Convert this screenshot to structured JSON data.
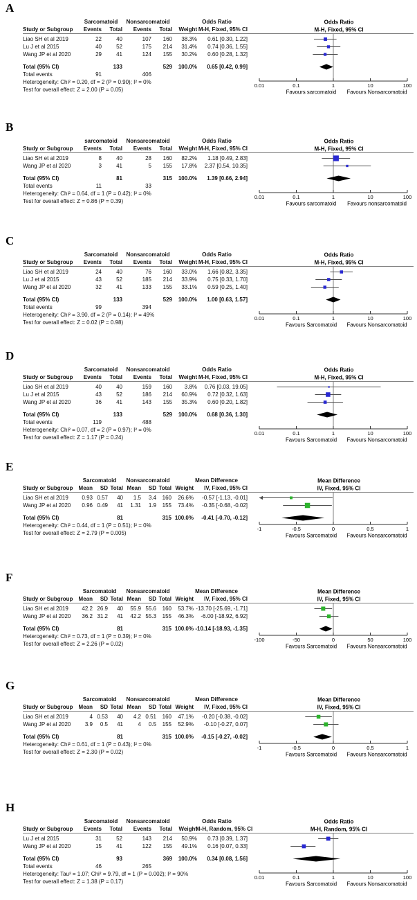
{
  "figure_labels": [
    "A",
    "B",
    "C",
    "D",
    "E",
    "F",
    "G",
    "H"
  ],
  "chart_data": [
    {
      "type": "forest",
      "label": "A",
      "data_kind": "or",
      "effect_measure": "Odds Ratio",
      "method": "M-H, Fixed, 95% CI",
      "group1": "Sarcomatoid",
      "group2": "Nonsarcomatoid",
      "columns": [
        "Study or Subgroup",
        "Events",
        "Total",
        "Events",
        "Total",
        "Weight"
      ],
      "marker_color": "#2a2ad2",
      "studies": [
        {
          "name": "Liao SH et al 2019",
          "cells": [
            "22",
            "40",
            "107",
            "160",
            "38.3%"
          ],
          "ci_text": "0.61 [0.30, 1.22]",
          "est": 0.61,
          "lo": 0.3,
          "hi": 1.22,
          "weight": 38.3
        },
        {
          "name": "Lu J et al 2015",
          "cells": [
            "40",
            "52",
            "175",
            "214",
            "31.4%"
          ],
          "ci_text": "0.74 [0.36, 1.55]",
          "est": 0.74,
          "lo": 0.36,
          "hi": 1.55,
          "weight": 31.4
        },
        {
          "name": "Wang JP et al 2020",
          "cells": [
            "29",
            "41",
            "124",
            "155",
            "30.2%"
          ],
          "ci_text": "0.60 [0.28, 1.32]",
          "est": 0.6,
          "lo": 0.28,
          "hi": 1.32,
          "weight": 30.2
        }
      ],
      "total": {
        "label": "Total (95% CI)",
        "t1": "133",
        "t2": "529",
        "weight": "100.0%",
        "ci_text": "0.65 [0.42, 0.99]",
        "est": 0.65,
        "lo": 0.42,
        "hi": 0.99
      },
      "total_events": {
        "label": "Total events",
        "v1": "91",
        "v2": "406"
      },
      "heterogeneity": "Heterogeneity: Chi² = 0.20, df = 2 (P = 0.90); I² = 0%",
      "overall_effect": "Test for overall effect: Z = 2.00 (P = 0.05)",
      "axis": {
        "scale": "log",
        "min": 0.01,
        "max": 100,
        "null_value": 1,
        "ticks": [
          {
            "v": 0.01,
            "label": "0.01"
          },
          {
            "v": 0.1,
            "label": "0.1"
          },
          {
            "v": 1,
            "label": "1"
          },
          {
            "v": 10,
            "label": "10"
          },
          {
            "v": 100,
            "label": "100"
          }
        ],
        "favours_left": "Favours sarcomatoid",
        "favours_right": "Favours Nonsarcomatoid"
      }
    },
    {
      "type": "forest",
      "label": "B",
      "data_kind": "or",
      "effect_measure": "Odds Ratio",
      "method": "M-H, Fixed, 95% CI",
      "group1": "sarcomatoid",
      "group2": "Nonsarcomatoid",
      "columns": [
        "Study or Subgroup",
        "Events",
        "Total",
        "Events",
        "Total",
        "Weight"
      ],
      "marker_color": "#2a2ad2",
      "studies": [
        {
          "name": "Liao SH et al 2019",
          "cells": [
            "8",
            "40",
            "28",
            "160",
            "82.2%"
          ],
          "ci_text": "1.18 [0.49, 2.83]",
          "est": 1.18,
          "lo": 0.49,
          "hi": 2.83,
          "weight": 82.2
        },
        {
          "name": "Wang JP et al 2020",
          "cells": [
            "3",
            "41",
            "5",
            "155",
            "17.8%"
          ],
          "ci_text": "2.37 [0.54, 10.35]",
          "est": 2.37,
          "lo": 0.54,
          "hi": 10.35,
          "weight": 17.8
        }
      ],
      "total": {
        "label": "Total (95% CI)",
        "t1": "81",
        "t2": "315",
        "weight": "100.0%",
        "ci_text": "1.39 [0.66, 2.94]",
        "est": 1.39,
        "lo": 0.66,
        "hi": 2.94
      },
      "total_events": {
        "label": "Total events",
        "v1": "11",
        "v2": "33"
      },
      "heterogeneity": "Heterogeneity: Chi² = 0.64, df = 1 (P = 0.42); I² = 0%",
      "overall_effect": "Test for overall effect: Z = 0.86 (P = 0.39)",
      "axis": {
        "scale": "log",
        "min": 0.01,
        "max": 100,
        "null_value": 1,
        "ticks": [
          {
            "v": 0.01,
            "label": "0.01"
          },
          {
            "v": 0.1,
            "label": "0.1"
          },
          {
            "v": 1,
            "label": "1"
          },
          {
            "v": 10,
            "label": "10"
          },
          {
            "v": 100,
            "label": "100"
          }
        ],
        "favours_left": "Favours sarcomatoid",
        "favours_right": "Favours nonsarcomatoid"
      }
    },
    {
      "type": "forest",
      "label": "C",
      "data_kind": "or",
      "effect_measure": "Odds Ratio",
      "method": "M-H, Fixed, 95% CI",
      "group1": "Sarcomatoid",
      "group2": "Nonsarcomatoid",
      "columns": [
        "Study or Subgroup",
        "Events",
        "Total",
        "Events",
        "Total",
        "Weight"
      ],
      "marker_color": "#2a2ad2",
      "studies": [
        {
          "name": "Liao SH et al 2019",
          "cells": [
            "24",
            "40",
            "76",
            "160",
            "33.0%"
          ],
          "ci_text": "1.66 [0.82, 3.35]",
          "est": 1.66,
          "lo": 0.82,
          "hi": 3.35,
          "weight": 33.0
        },
        {
          "name": "Lu J et al 2015",
          "cells": [
            "43",
            "52",
            "185",
            "214",
            "33.9%"
          ],
          "ci_text": "0.75 [0.33, 1.70]",
          "est": 0.75,
          "lo": 0.33,
          "hi": 1.7,
          "weight": 33.9
        },
        {
          "name": "Wang JP et al 2020",
          "cells": [
            "32",
            "41",
            "133",
            "155",
            "33.1%"
          ],
          "ci_text": "0.59 [0.25, 1.40]",
          "est": 0.59,
          "lo": 0.25,
          "hi": 1.4,
          "weight": 33.1
        }
      ],
      "total": {
        "label": "Total (95% CI)",
        "t1": "133",
        "t2": "529",
        "weight": "100.0%",
        "ci_text": "1.00 [0.63, 1.57]",
        "est": 1.0,
        "lo": 0.63,
        "hi": 1.57
      },
      "total_events": {
        "label": "Total events",
        "v1": "99",
        "v2": "394"
      },
      "heterogeneity": "Heterogeneity: Chi² = 3.90, df = 2 (P = 0.14); I² = 49%",
      "overall_effect": "Test for overall effect: Z = 0.02 (P = 0.98)",
      "axis": {
        "scale": "log",
        "min": 0.01,
        "max": 100,
        "null_value": 1,
        "ticks": [
          {
            "v": 0.01,
            "label": "0.01"
          },
          {
            "v": 0.1,
            "label": "0.1"
          },
          {
            "v": 1,
            "label": "1"
          },
          {
            "v": 10,
            "label": "10"
          },
          {
            "v": 100,
            "label": "100"
          }
        ],
        "favours_left": "Favours Sarcomatoid",
        "favours_right": "Favours Nonsarcomatoid"
      }
    },
    {
      "type": "forest",
      "label": "D",
      "data_kind": "or",
      "effect_measure": "Odds Ratio",
      "method": "M-H, Fixed, 95% CI",
      "group1": "Sarcomatoid",
      "group2": "Nonsarcomatoid",
      "columns": [
        "Study or Subgroup",
        "Events",
        "Total",
        "Events",
        "Total",
        "Weight"
      ],
      "marker_color": "#2a2ad2",
      "studies": [
        {
          "name": "Liao SH et al 2019",
          "cells": [
            "40",
            "40",
            "159",
            "160",
            "3.8%"
          ],
          "ci_text": "0.76 [0.03, 19.05]",
          "est": 0.76,
          "lo": 0.03,
          "hi": 19.05,
          "weight": 3.8
        },
        {
          "name": "Lu J et al 2015",
          "cells": [
            "43",
            "52",
            "186",
            "214",
            "60.9%"
          ],
          "ci_text": "0.72 [0.32, 1.63]",
          "est": 0.72,
          "lo": 0.32,
          "hi": 1.63,
          "weight": 60.9
        },
        {
          "name": "Wang JP et al 2020",
          "cells": [
            "36",
            "41",
            "143",
            "155",
            "35.3%"
          ],
          "ci_text": "0.60 [0.20, 1.82]",
          "est": 0.6,
          "lo": 0.2,
          "hi": 1.82,
          "weight": 35.3
        }
      ],
      "total": {
        "label": "Total (95% CI)",
        "t1": "133",
        "t2": "529",
        "weight": "100.0%",
        "ci_text": "0.68 [0.36, 1.30]",
        "est": 0.68,
        "lo": 0.36,
        "hi": 1.3
      },
      "total_events": {
        "label": "Total events",
        "v1": "119",
        "v2": "488"
      },
      "heterogeneity": "Heterogeneity: Chi² = 0.07, df = 2 (P = 0.97); I² = 0%",
      "overall_effect": "Test for overall effect: Z = 1.17 (P = 0.24)",
      "axis": {
        "scale": "log",
        "min": 0.01,
        "max": 100,
        "null_value": 1,
        "ticks": [
          {
            "v": 0.01,
            "label": "0.01"
          },
          {
            "v": 0.1,
            "label": "0.1"
          },
          {
            "v": 1,
            "label": "1"
          },
          {
            "v": 10,
            "label": "10"
          },
          {
            "v": 100,
            "label": "100"
          }
        ],
        "favours_left": "Favours Sarcomatoid",
        "favours_right": "Favours Nonsarcomatoid"
      }
    },
    {
      "type": "forest",
      "label": "E",
      "data_kind": "md",
      "effect_measure": "Mean Difference",
      "method": "IV, Fixed, 95% CI",
      "group1": "Sarcomatoid",
      "group2": "Nonsarcomatoid",
      "columns": [
        "Study or Subgroup",
        "Mean",
        "SD",
        "Total",
        "Mean",
        "SD",
        "Total",
        "Weight"
      ],
      "marker_color": "#2db32d",
      "studies": [
        {
          "name": "Liao SH et al 2019",
          "cells": [
            "0.93",
            "0.57",
            "40",
            "1.5",
            "3.4",
            "160",
            "26.6%"
          ],
          "ci_text": "-0.57 [-1.13, -0.01]",
          "est": -0.57,
          "lo": -1.13,
          "hi": -0.01,
          "weight": 26.6
        },
        {
          "name": "Wang JP et al 2020",
          "cells": [
            "0.96",
            "0.49",
            "41",
            "1.31",
            "1.9",
            "155",
            "73.4%"
          ],
          "ci_text": "-0.35 [-0.68, -0.02]",
          "est": -0.35,
          "lo": -0.68,
          "hi": -0.02,
          "weight": 73.4
        }
      ],
      "total": {
        "label": "Total (95% CI)",
        "t1": "81",
        "t2": "315",
        "weight": "100.0%",
        "ci_text": "-0.41 [-0.70, -0.12]",
        "est": -0.41,
        "lo": -0.7,
        "hi": -0.12
      },
      "total_events": null,
      "heterogeneity": "Heterogeneity: Chi² = 0.44, df = 1 (P = 0.51); I² = 0%",
      "overall_effect": "Test for overall effect: Z = 2.79 (P = 0.005)",
      "axis": {
        "scale": "linear",
        "min": -1,
        "max": 1,
        "null_value": 0,
        "ticks": [
          {
            "v": -1,
            "label": "-1"
          },
          {
            "v": -0.5,
            "label": "-0.5"
          },
          {
            "v": 0,
            "label": "0"
          },
          {
            "v": 0.5,
            "label": "0.5"
          },
          {
            "v": 1,
            "label": "1"
          }
        ],
        "favours_left": "Favours Sarcomatoid",
        "favours_right": "Favours Nonsarcomatoid"
      }
    },
    {
      "type": "forest",
      "label": "F",
      "data_kind": "md",
      "effect_measure": "Mean Difference",
      "method": "IV, Fixed, 95% CI",
      "group1": "Sarcomatoid",
      "group2": "Nonsarcomatoid",
      "columns": [
        "Study or Subgroup",
        "Mean",
        "SD",
        "Total",
        "Mean",
        "SD",
        "Total",
        "Weight"
      ],
      "marker_color": "#2db32d",
      "studies": [
        {
          "name": "Liao SH et al 2019",
          "cells": [
            "42.2",
            "26.9",
            "40",
            "55.9",
            "55.6",
            "160",
            "53.7%"
          ],
          "ci_text": "-13.70 [-25.69, -1.71]",
          "est": -13.7,
          "lo": -25.69,
          "hi": -1.71,
          "weight": 53.7
        },
        {
          "name": "Wang JP et al 2020",
          "cells": [
            "36.2",
            "31.2",
            "41",
            "42.2",
            "55.3",
            "155",
            "46.3%"
          ],
          "ci_text": "-6.00 [-18.92, 6.92]",
          "est": -6.0,
          "lo": -18.92,
          "hi": 6.92,
          "weight": 46.3
        }
      ],
      "total": {
        "label": "Total (95% CI)",
        "t1": "81",
        "t2": "315",
        "weight": "100.0%",
        "ci_text": "-10.14 [-18.93, -1.35]",
        "est": -10.14,
        "lo": -18.93,
        "hi": -1.35
      },
      "total_events": null,
      "heterogeneity": "Heterogeneity: Chi² = 0.73, df = 1 (P = 0.39); I² = 0%",
      "overall_effect": "Test for overall effect: Z = 2.26 (P = 0.02)",
      "axis": {
        "scale": "linear",
        "min": -100,
        "max": 100,
        "null_value": 0,
        "ticks": [
          {
            "v": -100,
            "label": "-100"
          },
          {
            "v": -50,
            "label": "-50"
          },
          {
            "v": 0,
            "label": "0"
          },
          {
            "v": 50,
            "label": "50"
          },
          {
            "v": 100,
            "label": "100"
          }
        ],
        "favours_left": "Favours Sarcomatoid",
        "favours_right": "Favours Nonsarcomatoid"
      }
    },
    {
      "type": "forest",
      "label": "G",
      "data_kind": "md",
      "effect_measure": "Mean Difference",
      "method": "IV, Fixed, 95% CI",
      "group1": "Sarcomatoid",
      "group2": "Nonsarcomatoid",
      "columns": [
        "Study or Subgroup",
        "Mean",
        "SD",
        "Total",
        "Mean",
        "SD",
        "Total",
        "Weight"
      ],
      "marker_color": "#2db32d",
      "studies": [
        {
          "name": "Liao SH et al 2019",
          "cells": [
            "4",
            "0.53",
            "40",
            "4.2",
            "0.51",
            "160",
            "47.1%"
          ],
          "ci_text": "-0.20 [-0.38, -0.02]",
          "est": -0.2,
          "lo": -0.38,
          "hi": -0.02,
          "weight": 47.1
        },
        {
          "name": "Wang JP et al 2020",
          "cells": [
            "3.9",
            "0.5",
            "41",
            "4",
            "0.5",
            "155",
            "52.9%"
          ],
          "ci_text": "-0.10 [-0.27, 0.07]",
          "est": -0.1,
          "lo": -0.27,
          "hi": 0.07,
          "weight": 52.9
        }
      ],
      "total": {
        "label": "Total (95% CI)",
        "t1": "81",
        "t2": "315",
        "weight": "100.0%",
        "ci_text": "-0.15 [-0.27, -0.02]",
        "est": -0.15,
        "lo": -0.27,
        "hi": -0.02
      },
      "total_events": null,
      "heterogeneity": "Heterogeneity: Chi² = 0.61, df = 1 (P = 0.43); I² = 0%",
      "overall_effect": "Test for overall effect: Z = 2.30 (P = 0.02)",
      "axis": {
        "scale": "linear",
        "min": -1,
        "max": 1,
        "null_value": 0,
        "ticks": [
          {
            "v": -1,
            "label": "-1"
          },
          {
            "v": -0.5,
            "label": "-0.5"
          },
          {
            "v": 0,
            "label": "0"
          },
          {
            "v": 0.5,
            "label": "0.5"
          },
          {
            "v": 1,
            "label": "1"
          }
        ],
        "favours_left": "Favours Sarcomatoid",
        "favours_right": "Favours Nonsarcomatoid"
      }
    },
    {
      "type": "forest",
      "label": "H",
      "data_kind": "or",
      "effect_measure": "Odds Ratio",
      "method": "M-H, Random, 95% CI",
      "group1": "Sarcomatoid",
      "group2": "Nonsarcomatoid",
      "columns": [
        "Study or Subgroup",
        "Events",
        "Total",
        "Events",
        "Total",
        "Weight"
      ],
      "marker_color": "#2a2ad2",
      "studies": [
        {
          "name": "Lu J et al 2015",
          "cells": [
            "31",
            "52",
            "143",
            "214",
            "50.9%"
          ],
          "ci_text": "0.73 [0.39, 1.37]",
          "est": 0.73,
          "lo": 0.39,
          "hi": 1.37,
          "weight": 50.9
        },
        {
          "name": "Wang JP et al 2020",
          "cells": [
            "15",
            "41",
            "122",
            "155",
            "49.1%"
          ],
          "ci_text": "0.16 [0.07, 0.33]",
          "est": 0.16,
          "lo": 0.07,
          "hi": 0.33,
          "weight": 49.1
        }
      ],
      "total": {
        "label": "Total (95% CI)",
        "t1": "93",
        "t2": "369",
        "weight": "100.0%",
        "ci_text": "0.34 [0.08, 1.56]",
        "est": 0.34,
        "lo": 0.08,
        "hi": 1.56
      },
      "total_events": {
        "label": "Total events",
        "v1": "46",
        "v2": "265"
      },
      "heterogeneity": "Heterogeneity: Tau² = 1.07; Chi² = 9.79, df = 1 (P = 0.002); I² = 90%",
      "overall_effect": "Test for overall effect: Z = 1.38 (P = 0.17)",
      "axis": {
        "scale": "log",
        "min": 0.01,
        "max": 100,
        "null_value": 1,
        "ticks": [
          {
            "v": 0.01,
            "label": "0.01"
          },
          {
            "v": 0.1,
            "label": "0.1"
          },
          {
            "v": 1,
            "label": "1"
          },
          {
            "v": 10,
            "label": "10"
          },
          {
            "v": 100,
            "label": "100"
          }
        ],
        "favours_left": "Favours Sarcomatoid",
        "favours_right": "Favours Nonsarcomatoid"
      }
    }
  ]
}
